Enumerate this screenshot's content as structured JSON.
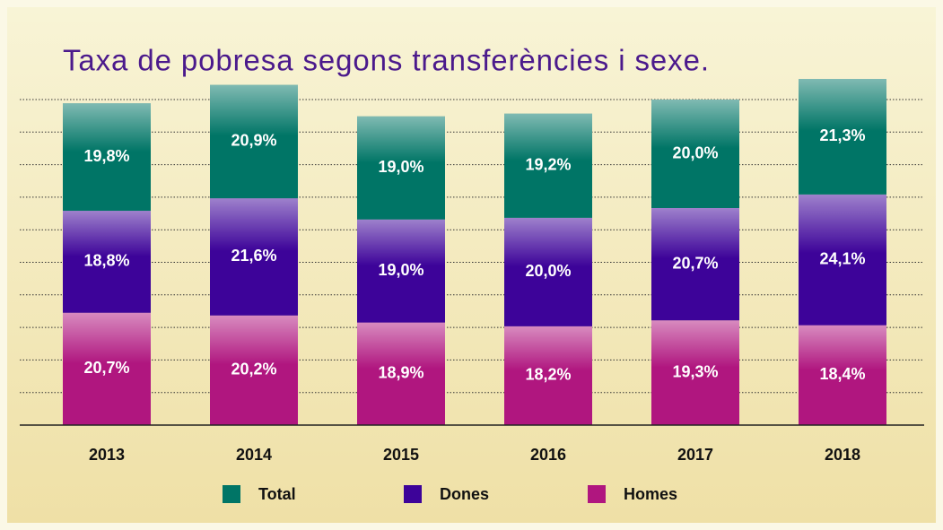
{
  "chart_data": {
    "type": "stacked_bar",
    "title": "Taxa de pobresa segons transferències i sexe.",
    "categories": [
      "2013",
      "2014",
      "2015",
      "2016",
      "2017",
      "2018"
    ],
    "series": [
      {
        "name": "Homes",
        "color": "#b0167f",
        "values": [
          20.7,
          20.2,
          18.9,
          18.2,
          19.3,
          18.4
        ],
        "value_labels": [
          "20,7%",
          "20,2%",
          "18,9%",
          "18,2%",
          "19,3%",
          "18,4%"
        ]
      },
      {
        "name": "Dones",
        "color": "#3d0399",
        "values": [
          18.8,
          21.6,
          19.0,
          20.0,
          20.7,
          24.1
        ],
        "value_labels": [
          "18,8%",
          "21,6%",
          "19,0%",
          "20,0%",
          "20,7%",
          "24,1%"
        ]
      },
      {
        "name": "Total",
        "color": "#007566",
        "values": [
          19.8,
          20.9,
          19.0,
          19.2,
          20.0,
          21.3
        ],
        "value_labels": [
          "19,8%",
          "20,9%",
          "19,0%",
          "19,2%",
          "20,0%",
          "21,3%"
        ]
      }
    ],
    "legend_order": [
      2,
      1,
      0
    ],
    "ylim": [
      0,
      60
    ],
    "yticks": [
      0,
      6,
      12,
      18,
      24,
      30,
      36,
      42,
      48,
      54,
      60
    ],
    "grid": true
  }
}
